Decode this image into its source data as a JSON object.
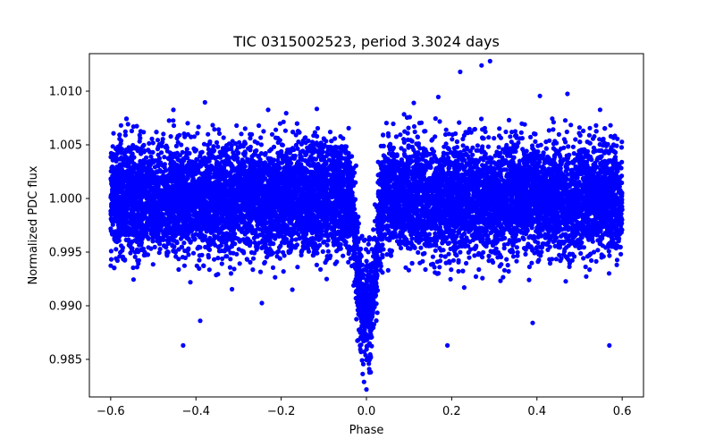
{
  "chart_data": {
    "type": "scatter",
    "title": "TIC 0315002523, period 3.3024 days",
    "xlabel": "Phase",
    "ylabel": "Normalized PDC flux",
    "xlim": [
      -0.65,
      0.65
    ],
    "ylim": [
      0.9815,
      1.0135
    ],
    "xticks": [
      -0.6,
      -0.4,
      -0.2,
      0.0,
      0.2,
      0.4,
      0.6
    ],
    "xtick_labels": [
      "−0.6",
      "−0.4",
      "−0.2",
      "0.0",
      "0.2",
      "0.4",
      "0.6"
    ],
    "yticks": [
      0.985,
      0.99,
      0.995,
      1.0,
      1.005,
      1.01
    ],
    "ytick_labels": [
      "0.985",
      "0.990",
      "0.995",
      "1.000",
      "1.005",
      "1.010"
    ],
    "grid": false,
    "color": "#0000ff",
    "series": [
      {
        "name": "PDC flux",
        "description": "dense phase-folded light curve, ~12000 points, baseline ~1.000 with scatter sigma ~0.0025, transit dip centered at phase 0.0 (depth ~0.010, half-width ~0.035)",
        "n_points": 12000,
        "phase_range": [
          -0.6,
          0.6
        ],
        "baseline": 1.0,
        "scatter_sigma": 0.0025,
        "transit_center": 0.0,
        "transit_depth": 0.01,
        "transit_halfwidth": 0.035,
        "notable_points": [
          {
            "x": -0.43,
            "y": 0.9863
          },
          {
            "x": -0.39,
            "y": 0.9886
          },
          {
            "x": 0.19,
            "y": 0.9863
          },
          {
            "x": 0.39,
            "y": 0.9884
          },
          {
            "x": 0.57,
            "y": 0.9863
          },
          {
            "x": 0.29,
            "y": 1.0128
          },
          {
            "x": 0.27,
            "y": 1.0124
          },
          {
            "x": 0.22,
            "y": 1.0118
          },
          {
            "x": 0.0,
            "y": 0.9822
          },
          {
            "x": 0.01,
            "y": 0.9838
          }
        ]
      }
    ]
  }
}
